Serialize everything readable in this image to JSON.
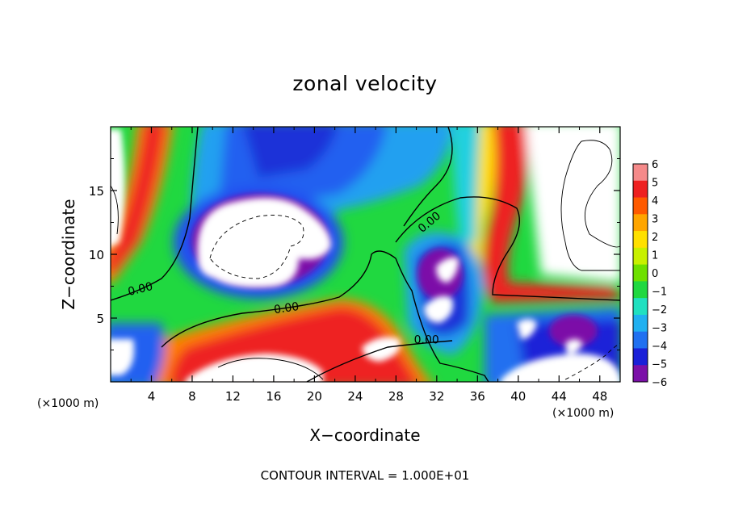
{
  "chart_data": {
    "type": "heatmap",
    "title": "zonal velocity",
    "xlabel": "X−coordinate",
    "ylabel": "Z−coordinate",
    "x_unit_left": "(×1000 m)",
    "x_unit_right": "(×1000 m)",
    "xlim": [
      0,
      50
    ],
    "ylim": [
      0,
      20
    ],
    "xticks": [
      4,
      8,
      12,
      16,
      20,
      24,
      28,
      32,
      36,
      40,
      44,
      48
    ],
    "yticks": [
      5,
      10,
      15
    ],
    "colorbar": {
      "levels": [
        "6",
        "5",
        "4",
        "3",
        "2",
        "1",
        "0",
        "−1",
        "−2",
        "−3",
        "−4",
        "−5",
        "−6"
      ],
      "colors": [
        "#f58a8a",
        "#ee2020",
        "#ff5a00",
        "#ffa500",
        "#ffe000",
        "#c8f000",
        "#6ee000",
        "#20d840",
        "#20e0c0",
        "#20b0f0",
        "#2070f0",
        "#1a20d8",
        "#7b10a8"
      ]
    },
    "contour_labels": [
      {
        "text": "0.00",
        "x": 3.0,
        "y": 7.0,
        "angle": -14
      },
      {
        "text": "0.00",
        "x": 17.3,
        "y": 5.5,
        "angle": -8
      },
      {
        "text": "0.00",
        "x": 31.0,
        "y": 3.0,
        "angle": 0
      },
      {
        "text": "0.00",
        "x": 31.5,
        "y": 12.3,
        "angle": -40
      }
    ],
    "contour_interval_note": "CONTOUR INTERVAL = 1.000E+01"
  }
}
